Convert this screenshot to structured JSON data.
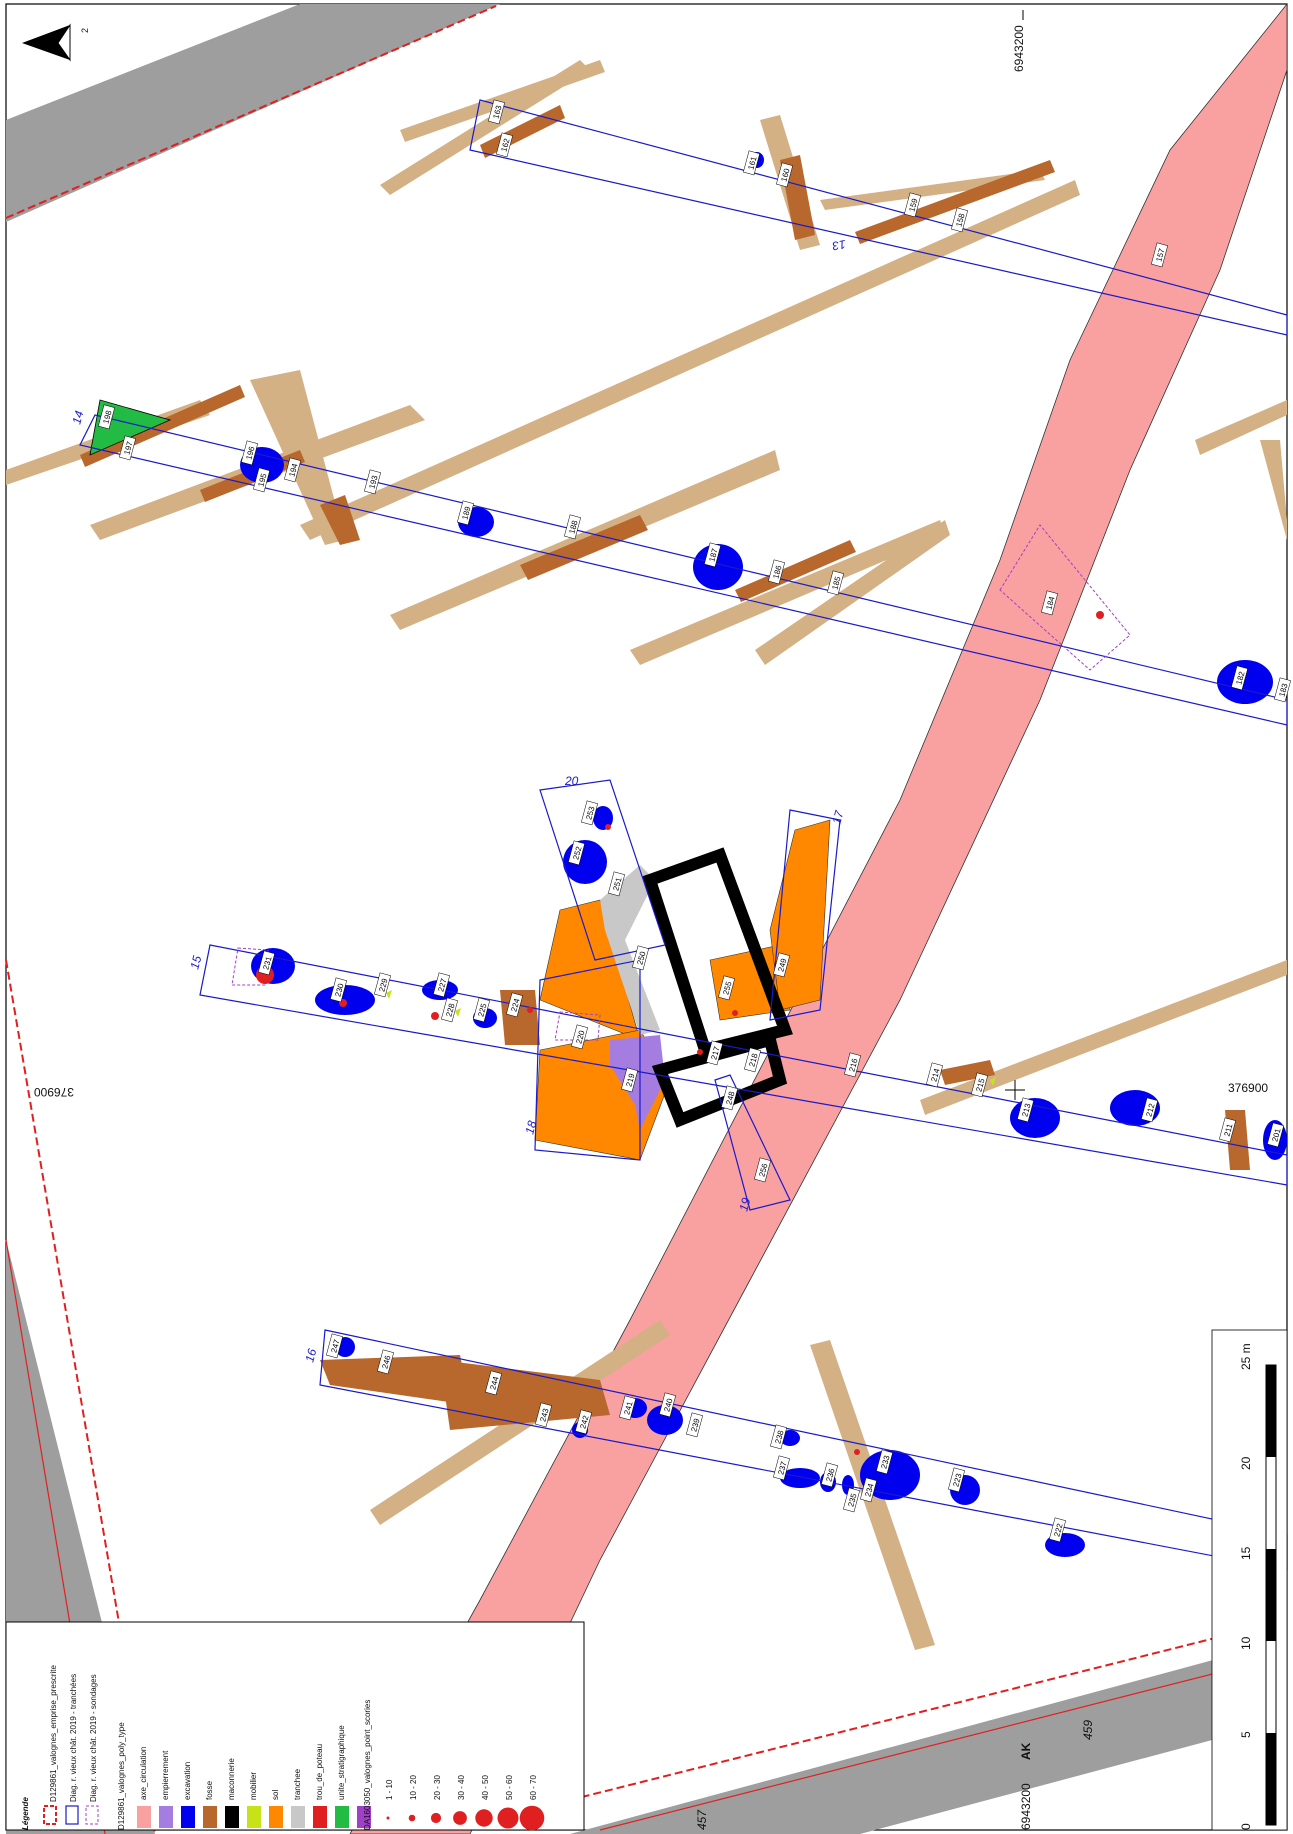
{
  "map": {
    "north_text": "2",
    "coords": {
      "top_right": "6943200",
      "mid_right": "376900",
      "mid_left": "376900",
      "bottom": "6943200",
      "parcel_ak": "AK",
      "parcel_459": "459",
      "parcel_457": "457"
    },
    "trenches": [
      "13",
      "14",
      "15",
      "16",
      "17",
      "18",
      "19",
      "20"
    ],
    "units": [
      "157",
      "158",
      "159",
      "160",
      "161",
      "162",
      "163",
      "182",
      "183",
      "184",
      "185",
      "186",
      "187",
      "188",
      "189",
      "193",
      "194",
      "195",
      "196",
      "197",
      "198",
      "201",
      "211",
      "212",
      "213",
      "214",
      "215",
      "216",
      "217",
      "218",
      "219",
      "220",
      "222",
      "223",
      "224",
      "225",
      "227",
      "228",
      "229",
      "230",
      "231",
      "233",
      "234",
      "235",
      "236",
      "237",
      "238",
      "239",
      "240",
      "241",
      "242",
      "243",
      "244",
      "246",
      "247",
      "248",
      "249",
      "250",
      "251",
      "252",
      "253",
      "255",
      "256"
    ],
    "scale": {
      "unit": "25 m",
      "ticks": [
        "0",
        "5",
        "10",
        "15",
        "20"
      ]
    },
    "colors": {
      "axe_circulation": "#f9a0a0",
      "empierrement": "#a57de0",
      "excavation": "#0000ee",
      "fosse": "#b8682c",
      "maconnerie": "#000000",
      "mobilier": "#c8e21a",
      "sol": "#ff8800",
      "tranchee": "#c8c8c8",
      "trou_de_poteau": "#e02020",
      "unite_stratigraphique": "#22bb44",
      "unused": "#a040c8",
      "old_feature": "#d4b085",
      "parcel_road": "#9e9e9e",
      "trench_outline": "#1a1acc"
    }
  },
  "legend": {
    "title": "Légende",
    "items": [
      "D129861_valognes_emprise_prescrite",
      "Diag. r. vieux chât. 2019 - tranchées",
      "Diag. r. vieux chât. 2019 - sondages"
    ],
    "poly_title": "D129861_valognes_poly_type",
    "poly_items": [
      "axe_circulation",
      "empierrement",
      "excavation",
      "fosse",
      "maconnerie",
      "mobilier",
      "sol",
      "tranchee",
      "trou_de_poteau",
      "unite_stratigraphique"
    ],
    "points_title": "DA1603050_valognes_point_scories",
    "points_items": [
      "1 - 10",
      "10 - 20",
      "20 - 30",
      "30 - 40",
      "40 - 50",
      "50 - 60",
      "60 - 70"
    ]
  }
}
